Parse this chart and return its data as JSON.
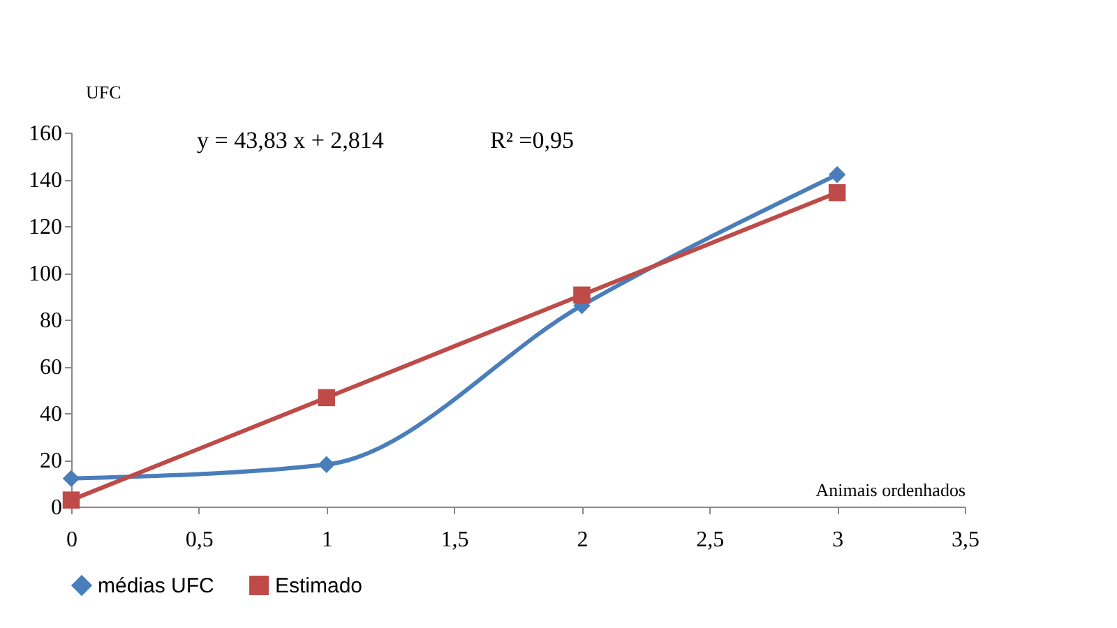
{
  "chart_data": {
    "type": "line",
    "xlabel": "Animais ordenhados",
    "ylabel": "UFC",
    "x": [
      0,
      1,
      2,
      3
    ],
    "series": [
      {
        "name": "médias UFC",
        "color": "#4a7ebb",
        "marker": "diamond",
        "values": [
          12,
          18,
          86,
          142
        ]
      },
      {
        "name": "Estimado",
        "color": "#be4b48",
        "marker": "square",
        "values": [
          2.8,
          46.6,
          90.5,
          134.3
        ]
      }
    ],
    "xlim": [
      0,
      3.5
    ],
    "xticks": [
      0,
      {
        "value": 0.5,
        "label": "0,5"
      },
      1,
      {
        "value": 1.5,
        "label": "1,5"
      },
      2,
      {
        "value": 2.5,
        "label": "2,5"
      },
      3,
      {
        "value": 3.5,
        "label": "3,5"
      }
    ],
    "ylim": [
      0,
      160
    ],
    "yticks": [
      0,
      20,
      40,
      60,
      80,
      100,
      120,
      140,
      160
    ],
    "annotations": [
      "y = 43,83 x + 2,814",
      "R² =0,95"
    ],
    "legend": "bottom",
    "grid": false
  }
}
